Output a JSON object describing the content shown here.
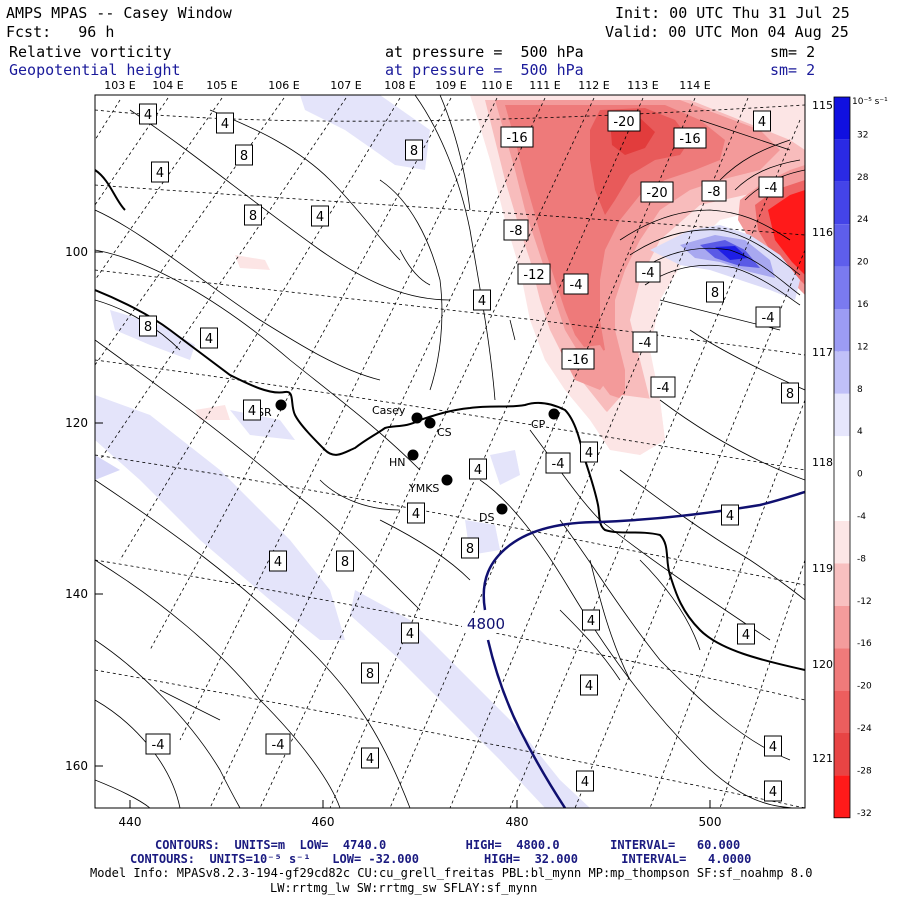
{
  "header": {
    "title": "AMPS MPAS -- Casey Window",
    "init": "Init: 00 UTC Thu 31 Jul 25",
    "forecast": "Fcst:   96 h",
    "valid": "Valid: 00 UTC Mon 04 Aug 25",
    "field1_name": "Relative vorticity",
    "field1_level": "at pressure =  500 hPa",
    "field1_sm": "sm= 2",
    "field2_name": "Geopotential height",
    "field2_level": "at pressure =  500 hPa",
    "field2_sm": "sm= 2"
  },
  "colors": {
    "positive": "#1e1ee6",
    "negative": "#ff1a1a",
    "height_contour": "#101070",
    "coast": "#000000"
  },
  "top_longitudes": [
    "103 E",
    "104 E",
    "105 E",
    "106 E",
    "107 E",
    "108 E",
    "109 E",
    "110 E",
    "111 E",
    "112 E",
    "113 E",
    "114 E",
    "115 E"
  ],
  "right_longitudes": [
    "116 E",
    "117 E",
    "118 E",
    "119 E",
    "120 E",
    "121 E"
  ],
  "x_ticks": [
    "440",
    "460",
    "480",
    "500"
  ],
  "y_ticks": [
    "100",
    "120",
    "140",
    "160"
  ],
  "colorbar": {
    "unit": "10⁻⁵ s⁻¹",
    "labels": [
      "32",
      "28",
      "24",
      "20",
      "16",
      "12",
      "8",
      "4",
      "0",
      "-4",
      "-8",
      "-12",
      "-16",
      "-20",
      "-24",
      "-28",
      "-32"
    ]
  },
  "stations": [
    {
      "name": "Casey"
    },
    {
      "name": "CS"
    },
    {
      "name": "SR"
    },
    {
      "name": "HN"
    },
    {
      "name": "YMKS"
    },
    {
      "name": "DS"
    },
    {
      "name": "CP"
    }
  ],
  "contour_labels": [
    "4",
    "4",
    "8",
    "4",
    "8",
    "4",
    "8",
    "4",
    "8",
    "4",
    "4",
    "4",
    "4",
    "8",
    "4",
    "4",
    "4",
    "8",
    "4",
    "8",
    "4",
    "4",
    "4",
    "4",
    "4",
    "4",
    "-4",
    "-4",
    "4",
    "4",
    "8",
    "8",
    "-16",
    "-20",
    "-16",
    "-20",
    "-8",
    "-4",
    "-8",
    "-12",
    "-4",
    "-4",
    "-16",
    "-4",
    "-4",
    "-4",
    "-4"
  ],
  "height_label": "4800",
  "footer": {
    "line1": "CONTOURS:  UNITS=m  LOW=  4740.0           HIGH=  4800.0       INTERVAL=   60.000",
    "line2": "CONTOURS:  UNITS=10⁻⁵ s⁻¹   LOW= -32.000         HIGH=  32.000      INTERVAL=   4.0000",
    "line3": "Model Info: MPASv8.2.3-194-gf29cd82c CU:cu_grell_freitas PBL:bl_mynn MP:mp_thompson SF:sf_noahmp 8.0",
    "line4": "LW:rrtmg_lw SW:rrtmg_sw SFLAY:sf_mynn"
  }
}
